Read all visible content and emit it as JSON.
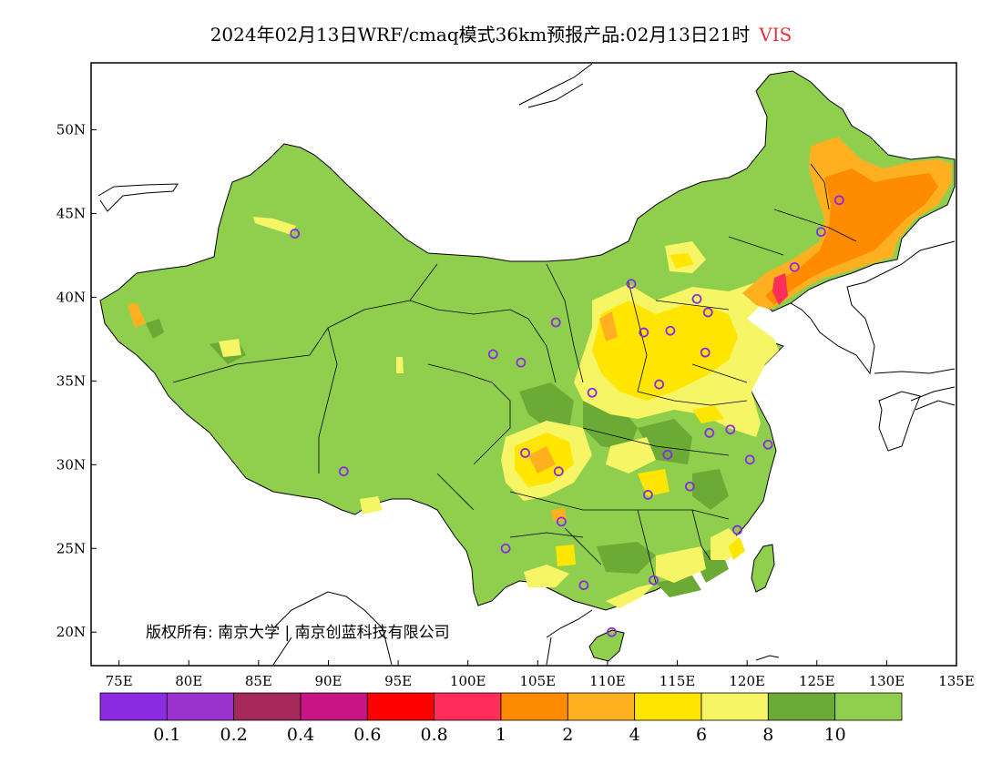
{
  "title": {
    "main": "2024年02月13日WRF/cmaq模式36km预报产品:02月13日21时",
    "variable": "VIS"
  },
  "copyright": "版权所有: 南京大学 | 南京创蓝科技有限公司",
  "axes": {
    "x_ticks": [
      "75E",
      "80E",
      "85E",
      "90E",
      "95E",
      "100E",
      "105E",
      "110E",
      "115E",
      "120E",
      "125E",
      "130E",
      "135E"
    ],
    "y_ticks": [
      "50N",
      "45N",
      "40N",
      "35N",
      "30N",
      "25N",
      "20N"
    ]
  },
  "legend": {
    "colors": [
      "#8b2be2",
      "#9932cc",
      "#a52a5a",
      "#c71585",
      "#ff0000",
      "#ff2f5a",
      "#ff8c00",
      "#ffb020",
      "#ffe600",
      "#f5f565",
      "#6aaa35",
      "#8fcf4d"
    ],
    "labels": [
      "0.1",
      "0.2",
      "0.4",
      "0.6",
      "0.8",
      "1",
      "2",
      "4",
      "6",
      "8",
      "10"
    ]
  },
  "map_colors": {
    "land": "#8fcf4d",
    "dark_green": "#6aaa35",
    "yellow": "#ffe600",
    "light_yellow": "#f5f565",
    "light_orange": "#ffb020",
    "orange": "#ff8c00",
    "red": "#ff2f5a",
    "station": "#8a2be2"
  },
  "stations": [
    [
      87.6,
      43.8
    ],
    [
      101.8,
      36.6
    ],
    [
      103.8,
      36.1
    ],
    [
      106.3,
      38.5
    ],
    [
      111.7,
      40.8
    ],
    [
      112.6,
      37.9
    ],
    [
      114.5,
      38.0
    ],
    [
      116.4,
      39.9
    ],
    [
      117.2,
      39.1
    ],
    [
      117.0,
      36.7
    ],
    [
      113.7,
      34.8
    ],
    [
      108.9,
      34.3
    ],
    [
      117.3,
      31.9
    ],
    [
      118.8,
      32.1
    ],
    [
      121.5,
      31.2
    ],
    [
      120.2,
      30.3
    ],
    [
      114.3,
      30.6
    ],
    [
      112.9,
      28.2
    ],
    [
      115.9,
      28.7
    ],
    [
      119.3,
      26.1
    ],
    [
      113.3,
      23.1
    ],
    [
      108.3,
      22.8
    ],
    [
      110.3,
      20.0
    ],
    [
      106.7,
      26.6
    ],
    [
      102.7,
      25.0
    ],
    [
      104.1,
      30.7
    ],
    [
      106.5,
      29.6
    ],
    [
      91.1,
      29.6
    ],
    [
      123.4,
      41.8
    ],
    [
      125.3,
      43.9
    ],
    [
      126.6,
      45.8
    ]
  ]
}
